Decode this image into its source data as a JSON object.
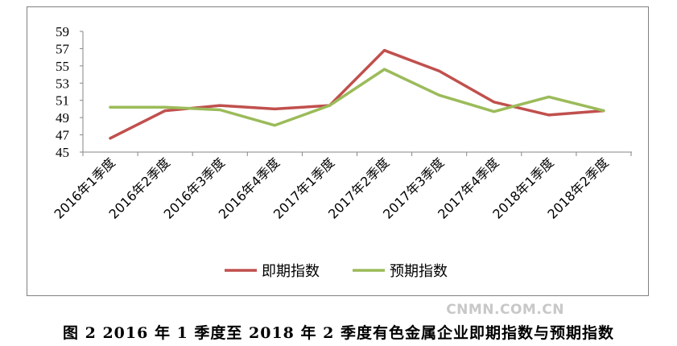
{
  "chart_data": {
    "type": "line",
    "categories": [
      "2016年1季度",
      "2016年2季度",
      "2016年3季度",
      "2016年4季度",
      "2017年1季度",
      "2017年2季度",
      "2017年3季度",
      "2017年4季度",
      "2018年1季度",
      "2018年2季度"
    ],
    "series": [
      {
        "name": "即期指数",
        "color": "#c0504d",
        "values": [
          46.6,
          49.8,
          50.4,
          50.0,
          50.4,
          56.8,
          54.4,
          50.8,
          49.3,
          49.8
        ]
      },
      {
        "name": "预期指数",
        "color": "#9bbb59",
        "values": [
          50.2,
          50.2,
          49.9,
          48.1,
          50.4,
          54.6,
          51.6,
          49.7,
          51.4,
          49.8
        ]
      }
    ],
    "yticks": [
      45,
      47,
      49,
      51,
      53,
      55,
      57,
      59
    ],
    "ylim": [
      45,
      59
    ],
    "grid": false,
    "legend_position": "bottom"
  },
  "caption": "图 2   2016 年 1 季度至 2018 年 2 季度有色金属企业即期指数与预期指数",
  "watermark": "CNMN.COM.CN"
}
